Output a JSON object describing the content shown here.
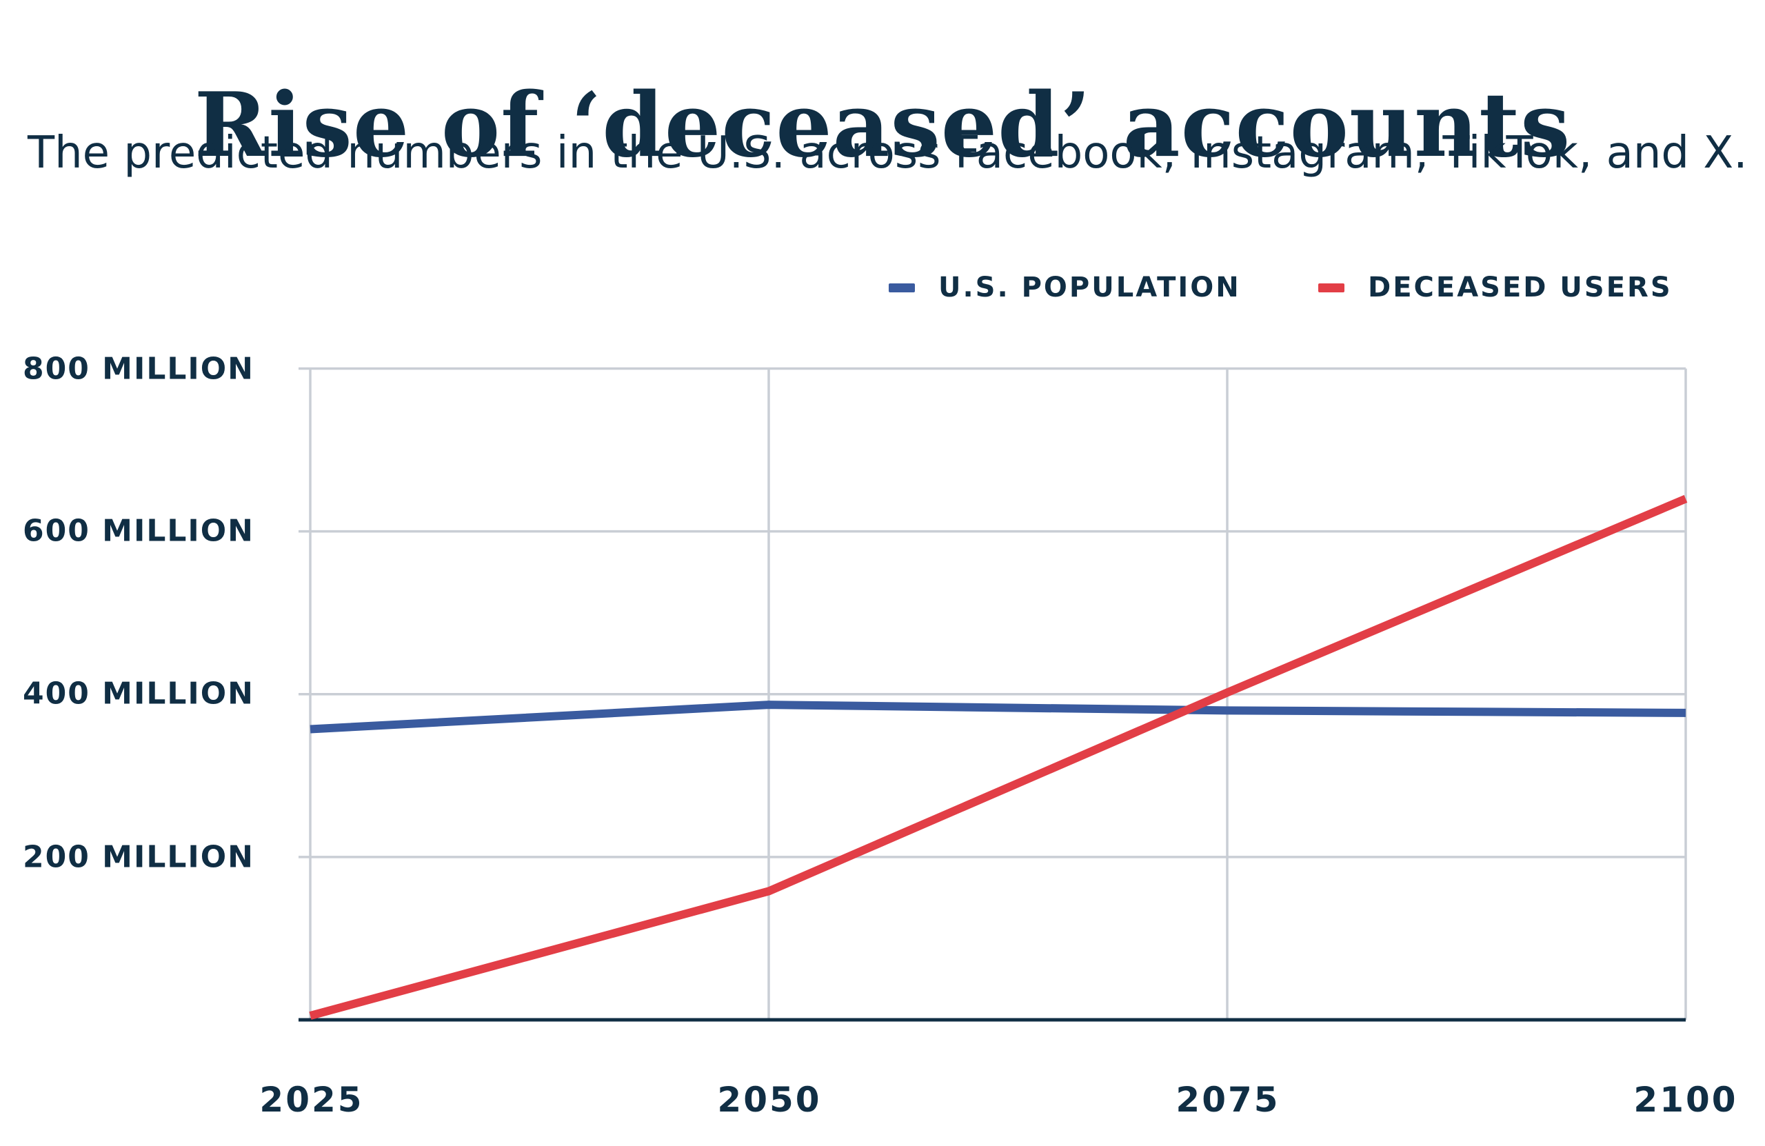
{
  "header": {
    "title": "Rise of ‘deceased’ accounts",
    "subtitle": "The predicted numbers in the U.S. across Facebook, Instagram, TikTok, and X."
  },
  "legend": [
    {
      "label": "U.S. POPULATION",
      "color": "#3a5b9f"
    },
    {
      "label": "DECEASED USERS",
      "color": "#e23e46"
    }
  ],
  "colors": {
    "text": "#102e44",
    "grid": "#c9ced5",
    "axis": "#102e44",
    "background": "#ffffff",
    "us_population_line": "#3a5b9f",
    "deceased_users_line": "#e23e46"
  },
  "chart_data": {
    "type": "line",
    "title": "Rise of ‘deceased’ accounts",
    "subtitle": "The predicted numbers in the U.S. across Facebook, Instagram, TikTok, and X.",
    "x": [
      2025,
      2050,
      2075,
      2100
    ],
    "x_tick_labels": [
      "2025",
      "2050",
      "2075",
      "2100"
    ],
    "y_tick_labels": [
      "800 MILLION",
      "600 MILLION",
      "400 MILLION",
      "200 MILLION"
    ],
    "y_ticks_millions": [
      800,
      600,
      400,
      200
    ],
    "ylim_millions": [
      0,
      800
    ],
    "xlabel": "",
    "ylabel": "",
    "grid": true,
    "legend_position": "top-right",
    "series": [
      {
        "name": "U.S. POPULATION",
        "color": "#3a5b9f",
        "values_millions": [
          357,
          387,
          380,
          377
        ]
      },
      {
        "name": "DECEASED USERS",
        "color": "#e23e46",
        "values_millions": [
          5,
          158,
          402,
          640
        ]
      }
    ]
  }
}
